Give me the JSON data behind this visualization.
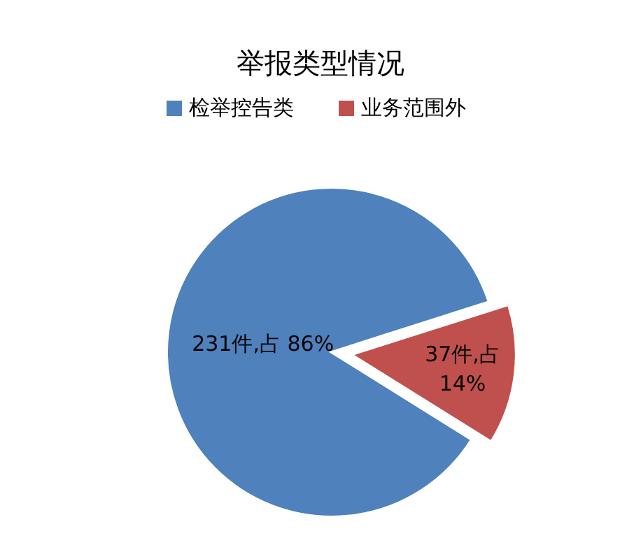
{
  "chart_data": {
    "type": "pie",
    "title": "举报类型情况",
    "categories": [
      "检举控告类",
      "业务范围外"
    ],
    "values": [
      231,
      37
    ],
    "colors": [
      "#4f81bd",
      "#c0504d"
    ],
    "value_labels": [
      "231件,占 86%",
      "37件,占 14%"
    ],
    "legend": "top"
  }
}
